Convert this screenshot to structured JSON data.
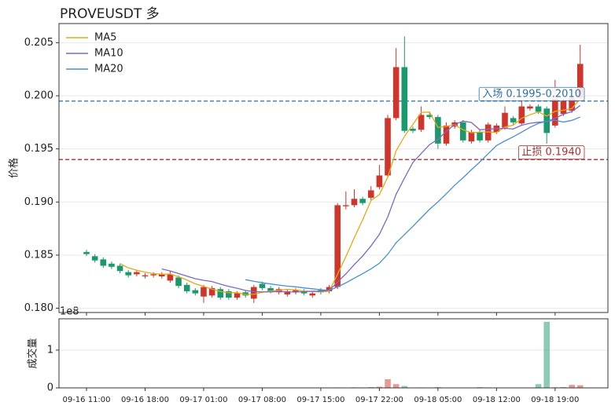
{
  "chart_data": [
    {
      "type": "candlestick",
      "title": "PROVEUSDT  多",
      "y_label": "价格",
      "categories": [
        "09-16 11:00",
        null,
        null,
        null,
        null,
        null,
        null,
        "09-16 18:00",
        null,
        null,
        null,
        null,
        null,
        null,
        "09-17 01:00",
        null,
        null,
        null,
        null,
        null,
        null,
        "09-17 08:00",
        null,
        null,
        null,
        null,
        null,
        null,
        "09-17 15:00",
        null,
        null,
        null,
        null,
        null,
        null,
        "09-17 22:00",
        null,
        null,
        null,
        null,
        null,
        null,
        "09-18 05:00",
        null,
        null,
        null,
        null,
        null,
        null,
        "09-18 12:00",
        null,
        null,
        null,
        null,
        null,
        null,
        "09-18 19:00",
        null,
        null,
        null
      ],
      "open": [
        0.1853,
        0.1849,
        0.1846,
        0.1842,
        0.184,
        0.1834,
        0.1832,
        0.183,
        0.1831,
        0.183,
        0.1826,
        0.1829,
        0.1822,
        0.1817,
        0.1811,
        0.1812,
        0.1818,
        0.1816,
        0.181,
        0.1815,
        0.1809,
        0.1823,
        0.1819,
        0.1815,
        0.1813,
        0.1815,
        0.1816,
        0.1812,
        0.1817,
        0.1816,
        0.182,
        0.1896,
        0.1897,
        0.1903,
        0.1904,
        0.1914,
        0.1925,
        0.1979,
        0.2027,
        0.1969,
        0.1968,
        0.1982,
        0.198,
        0.1955,
        0.1971,
        0.1975,
        0.1957,
        0.1966,
        0.1958,
        0.1966,
        0.197,
        0.1979,
        0.1974,
        0.1988,
        0.199,
        0.1988,
        0.1972,
        0.1983,
        0.1986,
        0.1998
      ],
      "high": [
        0.1855,
        0.1851,
        0.1848,
        0.1844,
        0.1842,
        0.1836,
        0.1836,
        0.1833,
        0.1834,
        0.1834,
        0.1835,
        0.1831,
        0.1824,
        0.1819,
        0.1822,
        0.1821,
        0.182,
        0.1818,
        0.1816,
        0.1817,
        0.1822,
        0.1825,
        0.1821,
        0.182,
        0.1818,
        0.1819,
        0.1818,
        0.1816,
        0.1819,
        0.1822,
        0.1899,
        0.191,
        0.1912,
        0.1905,
        0.1915,
        0.1935,
        0.1982,
        0.2045,
        0.2056,
        0.1971,
        0.199,
        0.1984,
        0.1982,
        0.1975,
        0.1977,
        0.1977,
        0.1968,
        0.1968,
        0.1975,
        0.1974,
        0.199,
        0.1981,
        0.1995,
        0.1992,
        0.1992,
        0.199,
        0.2015,
        0.1997,
        0.2,
        0.2048
      ],
      "low": [
        0.1849,
        0.1843,
        0.1838,
        0.1837,
        0.1833,
        0.1829,
        0.183,
        0.1828,
        0.1829,
        0.1828,
        0.1824,
        0.1819,
        0.1814,
        0.1812,
        0.1805,
        0.181,
        0.1808,
        0.1808,
        0.1808,
        0.181,
        0.1805,
        0.1817,
        0.1814,
        0.1813,
        0.1811,
        0.1813,
        0.1812,
        0.181,
        0.1813,
        0.1814,
        0.1818,
        0.1893,
        0.1895,
        0.1897,
        0.1902,
        0.1912,
        0.1923,
        0.1977,
        0.1965,
        0.1965,
        0.1966,
        0.1978,
        0.195,
        0.1953,
        0.1969,
        0.1956,
        0.1955,
        0.1956,
        0.1956,
        0.1964,
        0.1968,
        0.1973,
        0.1972,
        0.1986,
        0.1983,
        0.1955,
        0.197,
        0.1981,
        0.1984,
        0.1996
      ],
      "close": [
        0.1851,
        0.1845,
        0.184,
        0.1839,
        0.1835,
        0.1831,
        0.1834,
        0.1831,
        0.1832,
        0.1832,
        0.1832,
        0.1821,
        0.1816,
        0.1814,
        0.182,
        0.1819,
        0.181,
        0.181,
        0.1814,
        0.1812,
        0.182,
        0.1819,
        0.1816,
        0.1818,
        0.1816,
        0.1817,
        0.1814,
        0.1814,
        0.1815,
        0.182,
        0.1897,
        0.1897,
        0.1903,
        0.1899,
        0.1911,
        0.1925,
        0.1979,
        0.2027,
        0.1967,
        0.1967,
        0.1982,
        0.198,
        0.1955,
        0.1972,
        0.1975,
        0.1958,
        0.1966,
        0.1958,
        0.1973,
        0.1972,
        0.1984,
        0.1975,
        0.199,
        0.199,
        0.1985,
        0.1965,
        0.1997,
        0.1995,
        0.1998,
        0.203
      ],
      "up_color": "#d0352b",
      "down_color": "#1a9a6c",
      "series": [
        {
          "name": "MA5",
          "color": "#e6a817",
          "values": [
            null,
            null,
            null,
            null,
            0.1842,
            0.1838,
            0.18358,
            0.1834,
            0.18326,
            0.1832,
            0.18322,
            0.18296,
            0.18266,
            0.1823,
            0.18206,
            0.1818,
            0.18158,
            0.18146,
            0.18146,
            0.1813,
            0.18132,
            0.1815,
            0.18162,
            0.1817,
            0.18178,
            0.18172,
            0.18162,
            0.18158,
            0.18152,
            0.1816,
            0.1832,
            0.18486,
            0.18664,
            0.18832,
            0.19014,
            0.1907,
            0.19234,
            0.19482,
            0.19618,
            0.1973,
            0.19844,
            0.19846,
            0.19702,
            0.19712,
            0.19728,
            0.1968,
            0.19652,
            0.19658,
            0.1966,
            0.19654,
            0.19706,
            0.19724,
            0.19788,
            0.19822,
            0.19848,
            0.1981,
            0.19854,
            0.19864,
            0.1988,
            0.1997
          ]
        },
        {
          "name": "MA10",
          "color": "#7b68c4",
          "values": [
            null,
            null,
            null,
            null,
            null,
            null,
            null,
            null,
            null,
            0.1837,
            0.18351,
            0.18327,
            0.18303,
            0.18278,
            0.18263,
            0.18251,
            0.18227,
            0.18206,
            0.18188,
            0.18168,
            0.18156,
            0.18154,
            0.18154,
            0.18158,
            0.18154,
            0.18152,
            0.18156,
            0.1816,
            0.18161,
            0.18169,
            0.18246,
            0.18324,
            0.18411,
            0.18492,
            0.18587,
            0.18695,
            0.1886,
            0.19073,
            0.19225,
            0.19372,
            0.19457,
            0.1954,
            0.19592,
            0.19665,
            0.19729,
            0.19762,
            0.19749,
            0.1968,
            0.19686,
            0.19691,
            0.19693,
            0.19688,
            0.19723,
            0.19741,
            0.19751,
            0.19758,
            0.19789,
            0.19826,
            0.19851,
            0.19909
          ]
        },
        {
          "name": "MA20",
          "color": "#4a8fd4",
          "values": [
            null,
            null,
            null,
            null,
            null,
            null,
            null,
            null,
            null,
            null,
            null,
            null,
            null,
            null,
            null,
            null,
            null,
            null,
            null,
            0.18269,
            0.182535,
            0.182405,
            0.182285,
            0.18218,
            0.182085,
            0.182015,
            0.181915,
            0.18183,
            0.181745,
            0.181685,
            0.18201,
            0.18239,
            0.182825,
            0.18325,
            0.183705,
            0.184235,
            0.18508,
            0.186165,
            0.18693,
            0.187705,
            0.188515,
            0.18932,
            0.190015,
            0.190785,
            0.19158,
            0.192285,
            0.193045,
            0.193765,
            0.194555,
            0.195315,
            0.19575,
            0.19614,
            0.196575,
            0.19703,
            0.1974,
            0.1976,
            0.19769,
            0.19753,
            0.197685,
            0.198
          ]
        }
      ],
      "hlines": [
        {
          "value": 0.1995,
          "color": "#2f6fa8",
          "label": "入场 0.1995-0.2010"
        },
        {
          "value": 0.194,
          "color": "#a83232",
          "label": "止损 0.1940"
        }
      ],
      "ylim": [
        0.1796,
        0.2068
      ],
      "yticks": [
        {
          "value": 0.18,
          "label": "0.180"
        },
        0.185,
        {
          "value": 0.19,
          "label": "0.190"
        },
        0.195,
        {
          "value": 0.2,
          "label": "0.200"
        },
        0.205
      ],
      "grid": true,
      "legend": "upper left"
    },
    {
      "type": "bar",
      "y_label": "成交量",
      "offset_label": "1e8",
      "values": [
        0.004,
        0.005,
        0.004,
        0.003,
        0.004,
        0.003,
        0.003,
        0.004,
        0.003,
        0.003,
        0.005,
        0.004,
        0.004,
        0.003,
        0.005,
        0.004,
        0.004,
        0.003,
        0.003,
        0.003,
        0.005,
        0.004,
        0.003,
        0.003,
        0.003,
        0.003,
        0.003,
        0.003,
        0.003,
        0.004,
        0.012,
        0.01,
        0.015,
        0.012,
        0.02,
        0.03,
        0.23,
        0.1,
        0.05,
        0.01,
        0.012,
        0.006,
        0.02,
        0.01,
        0.006,
        0.008,
        0.005,
        0.02,
        0.012,
        0.008,
        0.01,
        0.006,
        0.01,
        0.006,
        0.1,
        1.75,
        0.015,
        0.02,
        0.08,
        0.07
      ],
      "ylim": [
        0,
        1.83
      ],
      "yticks": [
        0,
        1
      ],
      "grid": true
    }
  ]
}
